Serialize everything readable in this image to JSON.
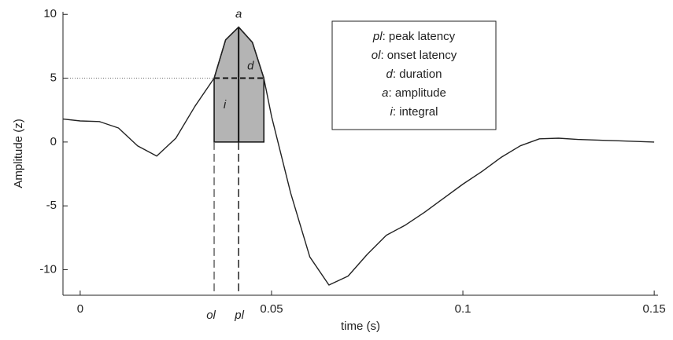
{
  "chart_data": {
    "type": "line",
    "x_label": "time (s)",
    "y_label": "Amplitude (z)",
    "xlim": [
      -0.0045,
      0.151
    ],
    "ylim": [
      -12,
      10.2
    ],
    "xticks": [
      0,
      0.05,
      0.1,
      0.15
    ],
    "yticks": [
      10,
      5,
      0,
      -5,
      -10
    ],
    "series": [
      {
        "color": "#222222",
        "x": [
          -0.0045,
          0,
          0.005,
          0.01,
          0.015,
          0.02,
          0.025,
          0.03,
          0.035,
          0.038,
          0.0414,
          0.045,
          0.048,
          0.05,
          0.055,
          0.06,
          0.065,
          0.07,
          0.075,
          0.08,
          0.085,
          0.09,
          0.095,
          0.1,
          0.105,
          0.11,
          0.115,
          0.12,
          0.125,
          0.13,
          0.14,
          0.15
        ],
        "values": [
          1.8,
          1.65,
          1.6,
          1.1,
          -0.3,
          -1.1,
          0.3,
          2.8,
          5.0,
          8.0,
          9.0,
          7.8,
          5.0,
          2.0,
          -4.0,
          -9.0,
          -11.2,
          -10.5,
          -8.8,
          -7.3,
          -6.5,
          -5.5,
          -4.4,
          -3.3,
          -2.3,
          -1.2,
          -0.3,
          0.25,
          0.3,
          0.2,
          0.1,
          0.0
        ]
      }
    ],
    "shade_color": "#b4b4b4",
    "onset_x": 0.035,
    "peak_x": 0.0414,
    "offset_x": 0.048,
    "half_y": 5,
    "peak_y": 9,
    "labels": {
      "a": "a",
      "d": "d",
      "i": "i",
      "ol": "ol",
      "pl": "pl"
    },
    "legend": [
      {
        "symbol": "pl",
        "text": ": peak latency"
      },
      {
        "symbol": "ol",
        "text": ": onset latency"
      },
      {
        "symbol": "d",
        "text": ": duration"
      },
      {
        "symbol": "a",
        "text": ": amplitude"
      },
      {
        "symbol": "i",
        "text": ": integral"
      }
    ]
  }
}
